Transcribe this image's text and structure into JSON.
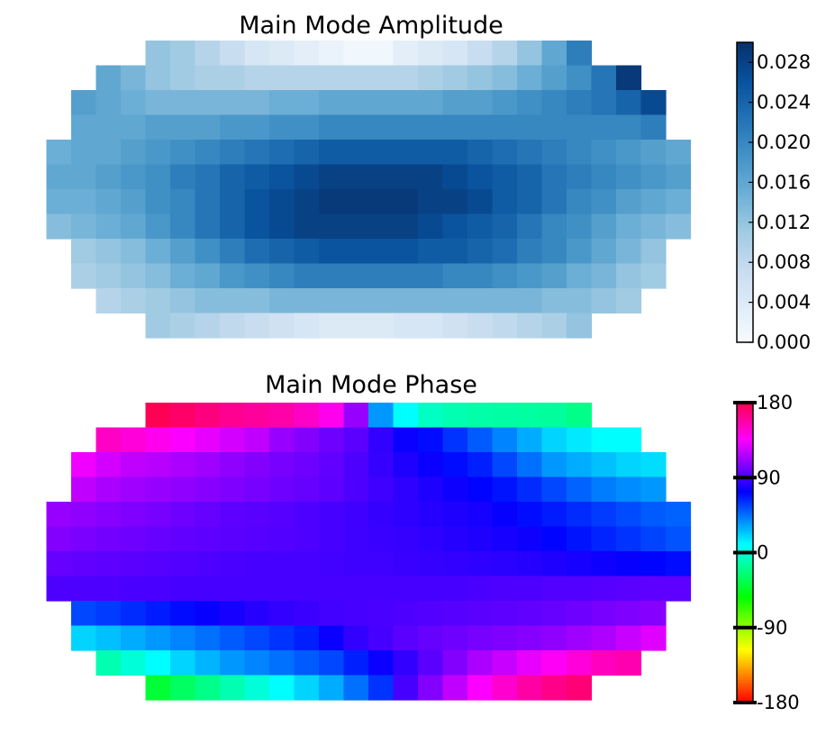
{
  "chart_data": [
    {
      "type": "heatmap",
      "title": "Main Mode Amplitude",
      "colormap": "Blues",
      "colorbar": {
        "min": 0.0,
        "max": 0.03,
        "ticks": [
          0.0,
          0.004,
          0.008,
          0.012,
          0.016,
          0.02,
          0.024,
          0.028
        ],
        "tick_labels": [
          "0.000",
          "0.004",
          "0.008",
          "0.012",
          "0.016",
          "0.020",
          "0.024",
          "0.028"
        ]
      },
      "grid": {
        "cols": 26,
        "rows": 12,
        "row_start_col": [
          4,
          2,
          1,
          1,
          0,
          0,
          0,
          0,
          1,
          1,
          2,
          4
        ],
        "values": [
          [
            0.012,
            0.011,
            0.009,
            0.007,
            0.005,
            0.004,
            0.003,
            0.002,
            0.001,
            0.001,
            0.003,
            0.004,
            0.005,
            0.007,
            0.009,
            0.012,
            0.016,
            0.021
          ],
          [
            0.016,
            0.014,
            0.012,
            0.011,
            0.01,
            0.01,
            0.009,
            0.009,
            0.009,
            0.009,
            0.009,
            0.009,
            0.009,
            0.01,
            0.011,
            0.012,
            0.013,
            0.015,
            0.017,
            0.019,
            0.022,
            0.029
          ],
          [
            0.017,
            0.016,
            0.015,
            0.014,
            0.014,
            0.014,
            0.014,
            0.014,
            0.015,
            0.015,
            0.016,
            0.016,
            0.016,
            0.016,
            0.016,
            0.017,
            0.017,
            0.018,
            0.019,
            0.02,
            0.021,
            0.022,
            0.024,
            0.027
          ],
          [
            0.016,
            0.016,
            0.016,
            0.017,
            0.017,
            0.017,
            0.018,
            0.018,
            0.019,
            0.019,
            0.02,
            0.02,
            0.02,
            0.02,
            0.02,
            0.02,
            0.02,
            0.02,
            0.02,
            0.02,
            0.02,
            0.02,
            0.02,
            0.021
          ],
          [
            0.015,
            0.016,
            0.016,
            0.017,
            0.018,
            0.019,
            0.02,
            0.021,
            0.022,
            0.023,
            0.024,
            0.025,
            0.025,
            0.025,
            0.025,
            0.025,
            0.025,
            0.024,
            0.023,
            0.022,
            0.021,
            0.02,
            0.019,
            0.018,
            0.017,
            0.016
          ],
          [
            0.016,
            0.016,
            0.017,
            0.018,
            0.019,
            0.021,
            0.022,
            0.024,
            0.025,
            0.026,
            0.027,
            0.028,
            0.028,
            0.028,
            0.028,
            0.028,
            0.027,
            0.026,
            0.025,
            0.024,
            0.022,
            0.021,
            0.02,
            0.019,
            0.018,
            0.017
          ],
          [
            0.015,
            0.015,
            0.016,
            0.017,
            0.019,
            0.02,
            0.022,
            0.024,
            0.026,
            0.027,
            0.028,
            0.029,
            0.029,
            0.029,
            0.029,
            0.028,
            0.028,
            0.027,
            0.025,
            0.024,
            0.022,
            0.02,
            0.019,
            0.017,
            0.016,
            0.015
          ],
          [
            0.013,
            0.014,
            0.015,
            0.016,
            0.018,
            0.02,
            0.022,
            0.024,
            0.026,
            0.027,
            0.028,
            0.028,
            0.028,
            0.028,
            0.028,
            0.027,
            0.026,
            0.025,
            0.024,
            0.022,
            0.02,
            0.019,
            0.017,
            0.015,
            0.014,
            0.013
          ],
          [
            0.011,
            0.012,
            0.013,
            0.015,
            0.017,
            0.019,
            0.021,
            0.023,
            0.024,
            0.025,
            0.026,
            0.026,
            0.026,
            0.026,
            0.025,
            0.025,
            0.024,
            0.023,
            0.021,
            0.02,
            0.018,
            0.016,
            0.014,
            0.012
          ],
          [
            0.01,
            0.011,
            0.012,
            0.013,
            0.015,
            0.016,
            0.018,
            0.019,
            0.02,
            0.021,
            0.021,
            0.021,
            0.021,
            0.021,
            0.021,
            0.02,
            0.02,
            0.019,
            0.018,
            0.017,
            0.015,
            0.014,
            0.012,
            0.011
          ],
          [
            0.009,
            0.01,
            0.011,
            0.012,
            0.013,
            0.013,
            0.013,
            0.014,
            0.014,
            0.014,
            0.014,
            0.014,
            0.014,
            0.014,
            0.014,
            0.014,
            0.014,
            0.014,
            0.013,
            0.013,
            0.012,
            0.011
          ],
          [
            0.011,
            0.01,
            0.009,
            0.008,
            0.007,
            0.006,
            0.005,
            0.004,
            0.004,
            0.004,
            0.005,
            0.005,
            0.006,
            0.007,
            0.008,
            0.009,
            0.01,
            0.012
          ]
        ]
      }
    },
    {
      "type": "heatmap",
      "title": "Main Mode Phase",
      "colormap": "hsv",
      "colorbar": {
        "min": -180,
        "max": 180,
        "ticks": [
          180,
          90,
          0,
          -90,
          -180
        ],
        "tick_labels": [
          "180",
          "90",
          "0",
          "-90",
          "-180"
        ]
      },
      "grid": {
        "cols": 26,
        "rows": 12,
        "row_start_col": [
          4,
          2,
          1,
          1,
          0,
          0,
          0,
          0,
          1,
          1,
          2,
          4
        ],
        "values": [
          [
            178,
            173,
            168,
            163,
            160,
            157,
            150,
            140,
            110,
            35,
            10,
            -5,
            -10,
            -12,
            -13,
            -14,
            -15,
            -20
          ],
          [
            150,
            145,
            140,
            135,
            130,
            125,
            120,
            110,
            105,
            100,
            95,
            85,
            75,
            70,
            60,
            50,
            40,
            30,
            20,
            15,
            10,
            10
          ],
          [
            132,
            125,
            120,
            118,
            115,
            112,
            108,
            105,
            102,
            100,
            97,
            92,
            86,
            80,
            75,
            70,
            65,
            55,
            45,
            35,
            30,
            25,
            20,
            18
          ],
          [
            120,
            115,
            112,
            110,
            108,
            106,
            104,
            102,
            100,
            98,
            96,
            92,
            88,
            84,
            80,
            76,
            72,
            68,
            62,
            55,
            48,
            42,
            38,
            35
          ],
          [
            110,
            108,
            106,
            104,
            102,
            100,
            98,
            96,
            95,
            94,
            92,
            90,
            88,
            86,
            84,
            82,
            80,
            78,
            74,
            70,
            66,
            62,
            58,
            54,
            50,
            48
          ],
          [
            105,
            103,
            101,
            100,
            98,
            97,
            96,
            95,
            94,
            93,
            92,
            90,
            88,
            87,
            86,
            84,
            82,
            80,
            78,
            76,
            72,
            68,
            64,
            60,
            56,
            52
          ],
          [
            98,
            97,
            96,
            95,
            94,
            93,
            92,
            91,
            90,
            90,
            90,
            89,
            88,
            88,
            87,
            86,
            85,
            84,
            83,
            82,
            80,
            78,
            76,
            74,
            72,
            70
          ],
          [
            92,
            92,
            92,
            91,
            91,
            90,
            90,
            90,
            90,
            90,
            90,
            90,
            90,
            90,
            90,
            90,
            90,
            91,
            92,
            92,
            93,
            93,
            94,
            95,
            96,
            96
          ],
          [
            55,
            58,
            62,
            66,
            70,
            74,
            78,
            82,
            85,
            87,
            89,
            90,
            91,
            92,
            93,
            94,
            95,
            96,
            97,
            98,
            100,
            102,
            104,
            106
          ],
          [
            20,
            25,
            30,
            35,
            40,
            45,
            50,
            55,
            60,
            65,
            75,
            85,
            90,
            95,
            98,
            100,
            102,
            104,
            106,
            108,
            112,
            116,
            122,
            128
          ],
          [
            -10,
            0,
            10,
            20,
            28,
            35,
            40,
            45,
            50,
            55,
            65,
            75,
            85,
            95,
            105,
            115,
            122,
            130,
            138,
            145,
            152,
            155
          ],
          [
            -40,
            -30,
            -20,
            -10,
            0,
            10,
            20,
            30,
            45,
            60,
            90,
            105,
            120,
            135,
            148,
            158,
            165,
            170
          ]
        ]
      }
    }
  ]
}
